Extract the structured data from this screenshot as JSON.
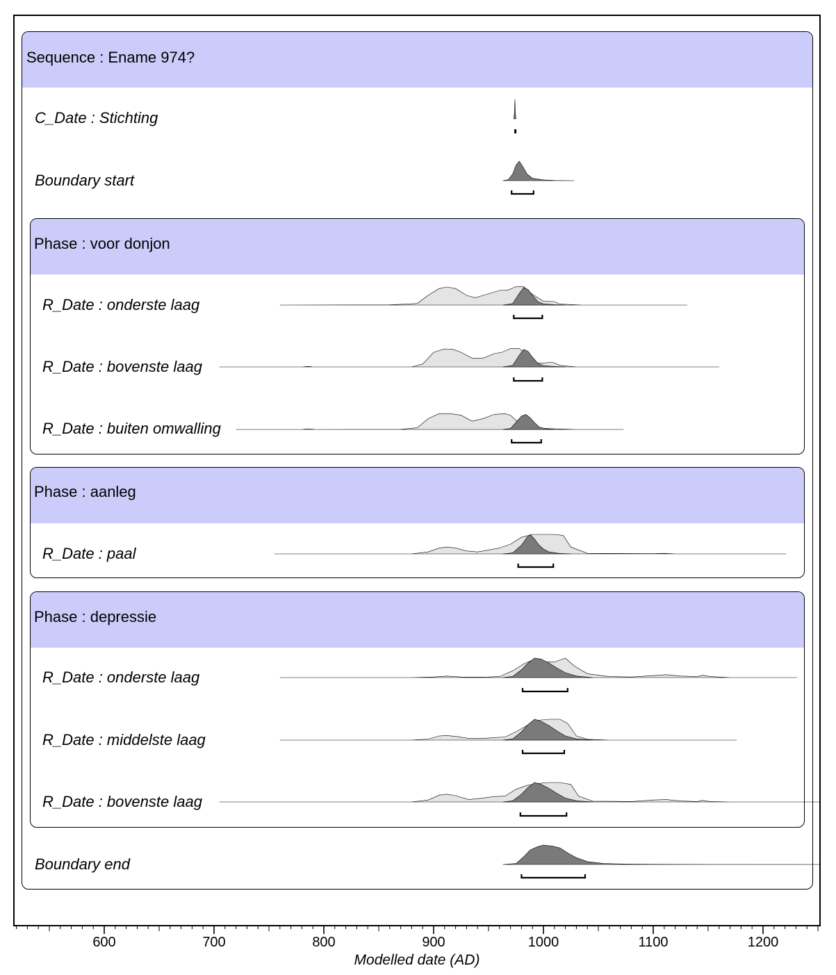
{
  "chart_data": {
    "type": "area",
    "title": "",
    "xlabel": "Modelled date (AD)",
    "ylabel": "",
    "xlim": [
      517,
      1253
    ],
    "ticks": [
      600,
      700,
      800,
      900,
      1000,
      1100,
      1200
    ],
    "tick_labels": [
      "600",
      "700",
      "800",
      "900",
      "1000",
      "1100",
      "1200"
    ],
    "grid": false,
    "colors": {
      "header": "#ccccfa",
      "prior": "#e4e4e4",
      "posterior": "#7a7a7a",
      "outline": "#000000"
    },
    "sequence": {
      "label": "Sequence : Ename 974?"
    },
    "phases": [
      {
        "label": "Phase : voor donjon"
      },
      {
        "label": "Phase : aanleg"
      },
      {
        "label": "Phase : depressie"
      }
    ],
    "rows": [
      {
        "name": "C_Date : Stichting",
        "posterior": {
          "x": [
            973,
            973.6,
            974,
            974.4,
            975
          ],
          "y": [
            0,
            0.3,
            1,
            0.3,
            0
          ]
        },
        "hpd": [
          [
            973.5,
            974.5
          ]
        ]
      },
      {
        "name": "Boundary start",
        "posterior": {
          "x": [
            963,
            968,
            972,
            975,
            978,
            981,
            985,
            990,
            1000,
            1010,
            1028
          ],
          "y": [
            0,
            0.05,
            0.35,
            0.8,
            1,
            0.75,
            0.35,
            0.12,
            0.04,
            0.01,
            0
          ]
        },
        "hpd": [
          [
            971,
            991
          ]
        ]
      },
      {
        "name": "R_Date : onderste laag",
        "prior": {
          "x": [
            760,
            860,
            885,
            895,
            905,
            912,
            920,
            930,
            938,
            948,
            960,
            968,
            975,
            982,
            990,
            1000,
            1010,
            1015,
            1035,
            1131
          ],
          "y": [
            0,
            0.01,
            0.08,
            0.5,
            0.85,
            0.93,
            0.85,
            0.5,
            0.38,
            0.55,
            0.75,
            0.78,
            0.95,
            0.95,
            0.55,
            0.2,
            0.18,
            0.05,
            0,
            0
          ]
        },
        "posterior": {
          "x": [
            963,
            972,
            978,
            982,
            986,
            990,
            995,
            1000,
            1010,
            1020
          ],
          "y": [
            0,
            0.08,
            0.6,
            0.9,
            0.8,
            0.5,
            0.18,
            0.06,
            0.02,
            0
          ]
        },
        "hpd": [
          [
            973,
            999
          ]
        ]
      },
      {
        "name": "R_Date : bovenste laag",
        "prior": {
          "x": [
            705,
            780,
            786,
            790,
            880,
            890,
            900,
            910,
            918,
            925,
            935,
            945,
            955,
            962,
            970,
            978,
            985,
            992,
            1000,
            1008,
            1015,
            1030,
            1160
          ],
          "y": [
            0,
            0,
            0.03,
            0,
            0,
            0.15,
            0.75,
            0.93,
            0.9,
            0.75,
            0.45,
            0.45,
            0.68,
            0.75,
            0.95,
            0.95,
            0.6,
            0.2,
            0.2,
            0.25,
            0.08,
            0,
            0
          ]
        },
        "posterior": {
          "x": [
            963,
            972,
            978,
            982,
            986,
            990,
            995,
            1000,
            1010,
            1020
          ],
          "y": [
            0,
            0.08,
            0.6,
            0.9,
            0.8,
            0.5,
            0.18,
            0.06,
            0.02,
            0
          ]
        },
        "hpd": [
          [
            973,
            999
          ]
        ]
      },
      {
        "name": "R_Date : buiten omwalling",
        "prior": {
          "x": [
            720,
            780,
            786,
            792,
            870,
            885,
            895,
            905,
            915,
            925,
            935,
            945,
            955,
            965,
            970,
            975,
            985,
            995,
            1005,
            1015,
            1030,
            1073
          ],
          "y": [
            0,
            0,
            0.04,
            0,
            0.01,
            0.1,
            0.65,
            0.95,
            0.95,
            0.85,
            0.5,
            0.65,
            0.9,
            0.95,
            0.85,
            0.55,
            0.35,
            0.1,
            0.05,
            0.03,
            0,
            0
          ]
        },
        "posterior": {
          "x": [
            963,
            970,
            976,
            980,
            984,
            988,
            992,
            996,
            1002,
            1010
          ],
          "y": [
            0,
            0.06,
            0.5,
            0.8,
            0.9,
            0.7,
            0.4,
            0.15,
            0.04,
            0
          ]
        },
        "hpd": [
          [
            971,
            998
          ]
        ]
      },
      {
        "name": "R_Date : paal",
        "prior": {
          "x": [
            755,
            880,
            895,
            905,
            912,
            920,
            930,
            940,
            950,
            960,
            970,
            980,
            990,
            1000,
            1010,
            1018,
            1025,
            1040,
            1100,
            1110,
            1120,
            1221
          ],
          "y": [
            0,
            0,
            0.1,
            0.3,
            0.35,
            0.3,
            0.15,
            0.1,
            0.2,
            0.3,
            0.5,
            0.85,
            1,
            1,
            1,
            0.95,
            0.35,
            0.03,
            0.01,
            0.03,
            0,
            0
          ]
        },
        "posterior": {
          "x": [
            963,
            972,
            980,
            985,
            988,
            992,
            996,
            1000,
            1005,
            1015,
            1025
          ],
          "y": [
            0,
            0.05,
            0.45,
            0.85,
            1,
            0.75,
            0.45,
            0.25,
            0.1,
            0.02,
            0
          ]
        },
        "hpd": [
          [
            977,
            1009
          ]
        ]
      },
      {
        "name": "R_Date : onderste laag",
        "prior": {
          "x": [
            760,
            880,
            900,
            912,
            925,
            935,
            950,
            960,
            972,
            982,
            990,
            1000,
            1010,
            1020,
            1028,
            1040,
            1060,
            1080,
            1100,
            1112,
            1125,
            1140,
            1145,
            1152,
            1170,
            1231
          ],
          "y": [
            0,
            0,
            0.03,
            0.08,
            0.03,
            0.02,
            0.03,
            0.05,
            0.35,
            0.7,
            0.9,
            0.8,
            0.8,
            1,
            0.6,
            0.2,
            0.05,
            0.03,
            0.1,
            0.15,
            0.08,
            0.05,
            0.12,
            0.05,
            0,
            0
          ]
        },
        "posterior": {
          "x": [
            963,
            972,
            980,
            986,
            992,
            998,
            1005,
            1012,
            1020,
            1030,
            1045
          ],
          "y": [
            0,
            0.06,
            0.4,
            0.75,
            1,
            0.95,
            0.75,
            0.5,
            0.25,
            0.08,
            0
          ]
        },
        "hpd": [
          [
            981,
            1022
          ]
        ]
      },
      {
        "name": "R_Date : middelste laag",
        "prior": {
          "x": [
            760,
            880,
            895,
            905,
            912,
            920,
            932,
            945,
            955,
            965,
            975,
            985,
            995,
            1005,
            1015,
            1022,
            1030,
            1040,
            1060,
            1176
          ],
          "y": [
            0,
            0,
            0.05,
            0.2,
            0.22,
            0.18,
            0.08,
            0.08,
            0.12,
            0.15,
            0.4,
            0.7,
            0.95,
            1,
            1,
            0.8,
            0.2,
            0.04,
            0,
            0
          ]
        },
        "posterior": {
          "x": [
            963,
            972,
            980,
            986,
            992,
            998,
            1005,
            1012,
            1020,
            1030,
            1045
          ],
          "y": [
            0,
            0.06,
            0.4,
            0.75,
            1,
            0.9,
            0.7,
            0.45,
            0.2,
            0.06,
            0
          ]
        },
        "hpd": [
          [
            981,
            1019
          ]
        ]
      },
      {
        "name": "R_Date : bovenste laag",
        "prior": {
          "x": [
            705,
            880,
            895,
            905,
            912,
            920,
            932,
            945,
            955,
            965,
            975,
            985,
            995,
            1005,
            1015,
            1025,
            1032,
            1045,
            1080,
            1100,
            1112,
            1125,
            1140,
            1145,
            1152,
            1170,
            1253
          ],
          "y": [
            0,
            0,
            0.1,
            0.35,
            0.4,
            0.32,
            0.12,
            0.2,
            0.28,
            0.3,
            0.65,
            0.85,
            0.95,
            1,
            1,
            0.9,
            0.3,
            0.04,
            0.02,
            0.1,
            0.12,
            0.05,
            0.02,
            0.08,
            0.02,
            0,
            0
          ]
        },
        "posterior": {
          "x": [
            963,
            972,
            980,
            986,
            992,
            998,
            1005,
            1012,
            1020,
            1030,
            1045
          ],
          "y": [
            0,
            0.06,
            0.4,
            0.75,
            1,
            0.9,
            0.7,
            0.45,
            0.2,
            0.06,
            0
          ]
        },
        "hpd": [
          [
            979,
            1021
          ]
        ]
      },
      {
        "name": "Boundary end",
        "posterior": {
          "x": [
            963,
            975,
            982,
            988,
            995,
            1000,
            1008,
            1015,
            1022,
            1030,
            1040,
            1055,
            1075,
            1100,
            1150,
            1253
          ],
          "y": [
            0,
            0.05,
            0.4,
            0.75,
            0.92,
            1,
            0.95,
            0.85,
            0.6,
            0.35,
            0.15,
            0.05,
            0.02,
            0.01,
            0.005,
            0
          ]
        },
        "hpd": [
          [
            980,
            1038
          ]
        ]
      }
    ]
  }
}
